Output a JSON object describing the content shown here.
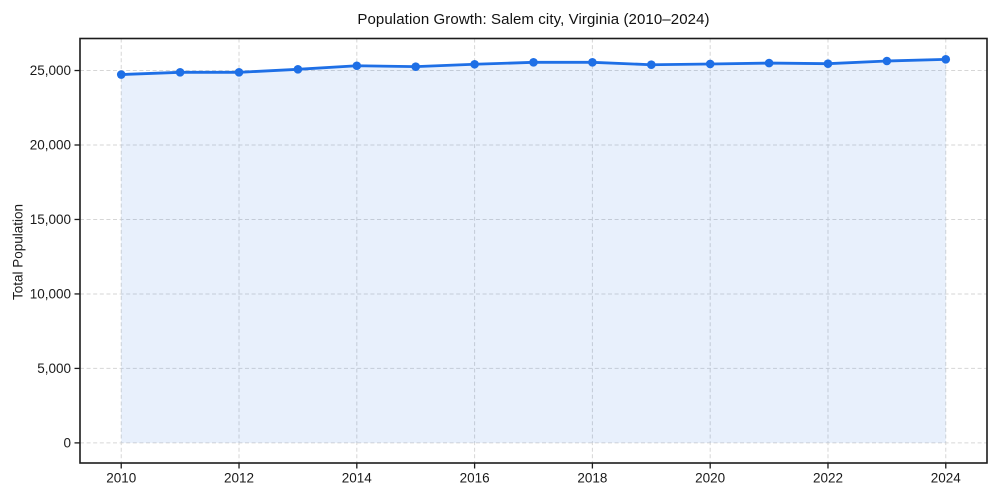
{
  "chart_data": {
    "type": "line",
    "title": "Population Growth: Salem city, Virginia (2010–2024)",
    "xlabel": "",
    "ylabel": "Total Population",
    "x": [
      2010,
      2011,
      2012,
      2013,
      2014,
      2015,
      2016,
      2017,
      2018,
      2019,
      2020,
      2021,
      2022,
      2023,
      2024
    ],
    "series": [
      {
        "name": "Total Population",
        "values": [
          24730,
          24880,
          24880,
          25080,
          25320,
          25260,
          25420,
          25550,
          25550,
          25390,
          25440,
          25500,
          25460,
          25640,
          25750
        ]
      }
    ],
    "x_ticks": [
      2010,
      2012,
      2014,
      2016,
      2018,
      2020,
      2022,
      2024
    ],
    "x_tick_labels": [
      "2010",
      "2012",
      "2014",
      "2016",
      "2018",
      "2020",
      "2022",
      "2024"
    ],
    "y_ticks": [
      0,
      5000,
      10000,
      15000,
      20000,
      25000
    ],
    "y_tick_labels": [
      "0",
      "5,000",
      "10,000",
      "15,000",
      "20,000",
      "25,000"
    ],
    "xlim": [
      2009.3,
      2024.7
    ],
    "ylim": [
      -1350,
      27150
    ],
    "grid": true,
    "grid_style": "dashed",
    "legend": "none",
    "marker": "circle",
    "area_fill": true,
    "colors": {
      "line": "#1e6fe6",
      "fill": "#1e6fe6",
      "grid": "#d6d6d6",
      "spine": "#1c1c1c",
      "text": "#1a1a1a",
      "background": "#ffffff"
    },
    "fill_opacity": 0.1
  }
}
